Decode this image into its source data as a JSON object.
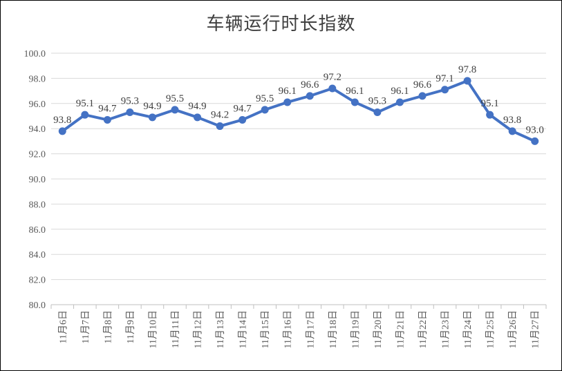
{
  "chart_data": {
    "type": "line",
    "title": "车辆运行时长指数",
    "xlabel": "",
    "ylabel": "",
    "ylim": [
      80.0,
      100.0
    ],
    "yticks": [
      "80.0",
      "82.0",
      "84.0",
      "86.0",
      "88.0",
      "90.0",
      "92.0",
      "94.0",
      "96.0",
      "98.0",
      "100.0"
    ],
    "grid": true,
    "legend": "none",
    "categories": [
      "11月6日",
      "11月7日",
      "11月8日",
      "11月9日",
      "11月10日",
      "11月11日",
      "11月12日",
      "11月13日",
      "11月14日",
      "11月15日",
      "11月16日",
      "11月17日",
      "11月18日",
      "11月19日",
      "11月20日",
      "11月21日",
      "11月22日",
      "11月23日",
      "11月24日",
      "11月25日",
      "11月26日",
      "11月27日"
    ],
    "series": [
      {
        "values": [
          93.8,
          95.1,
          94.7,
          95.3,
          94.9,
          95.5,
          94.9,
          94.2,
          94.7,
          95.5,
          96.1,
          96.6,
          97.2,
          96.1,
          95.3,
          96.1,
          96.6,
          97.1,
          97.8,
          95.1,
          93.8,
          93.0
        ],
        "labels": [
          "93.8",
          "95.1",
          "94.7",
          "95.3",
          "94.9",
          "95.5",
          "94.9",
          "94.2",
          "94.7",
          "95.5",
          "96.1",
          "96.6",
          "97.2",
          "96.1",
          "95.3",
          "96.1",
          "96.6",
          "97.1",
          "97.8",
          "95.1",
          "93.8",
          "93.0"
        ],
        "color": "#4472C4"
      }
    ]
  },
  "colors": {
    "line": "#4472C4",
    "grid": "#D9D9D9",
    "axis": "#BFBFBF"
  }
}
